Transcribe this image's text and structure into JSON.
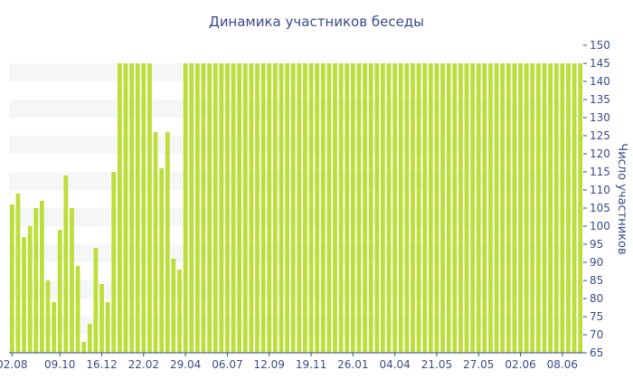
{
  "colors": {
    "bar": "#bdde3a",
    "text": "#3a4a8c",
    "band": "#f6f6f6",
    "axis": "#3a4a8c"
  },
  "chart_data": {
    "type": "bar",
    "title": "Динамика участников беседы",
    "ylabel": "Число участников",
    "xlabel": "",
    "ylim": [
      65,
      150
    ],
    "y_axis_position": "right",
    "grid": "alternating horizontal bands",
    "y_ticks": [
      65,
      70,
      75,
      80,
      85,
      90,
      95,
      100,
      105,
      110,
      115,
      120,
      125,
      130,
      135,
      140,
      145,
      150
    ],
    "x_ticks": [
      {
        "index": 0,
        "label": "02.08"
      },
      {
        "index": 8,
        "label": "09.10"
      },
      {
        "index": 15,
        "label": "16.12"
      },
      {
        "index": 22,
        "label": "22.02"
      },
      {
        "index": 29,
        "label": "29.04"
      },
      {
        "index": 36,
        "label": "06.07"
      },
      {
        "index": 43,
        "label": "12.09"
      },
      {
        "index": 50,
        "label": "19.11"
      },
      {
        "index": 57,
        "label": "26.01"
      },
      {
        "index": 64,
        "label": "04.04"
      },
      {
        "index": 71,
        "label": "21.05"
      },
      {
        "index": 78,
        "label": "27.05"
      },
      {
        "index": 85,
        "label": "02.06"
      },
      {
        "index": 92,
        "label": "08.06"
      }
    ],
    "values": [
      106,
      109,
      97,
      100,
      105,
      107,
      85,
      79,
      99,
      114,
      105,
      89,
      68,
      73,
      94,
      84,
      79,
      115,
      145,
      145,
      145,
      145,
      145,
      145,
      126,
      116,
      126,
      91,
      88,
      145,
      145,
      145,
      145,
      145,
      145,
      145,
      145,
      145,
      145,
      145,
      145,
      145,
      145,
      145,
      145,
      145,
      145,
      145,
      145,
      145,
      145,
      145,
      145,
      145,
      145,
      145,
      145,
      145,
      145,
      145,
      145,
      145,
      145,
      145,
      145,
      145,
      145,
      145,
      145,
      145,
      145,
      145,
      145,
      145,
      145,
      145,
      145,
      145,
      145,
      145,
      145,
      145,
      145,
      145,
      145,
      145,
      145,
      145,
      145,
      145,
      145,
      145,
      145,
      145,
      145,
      145
    ]
  }
}
